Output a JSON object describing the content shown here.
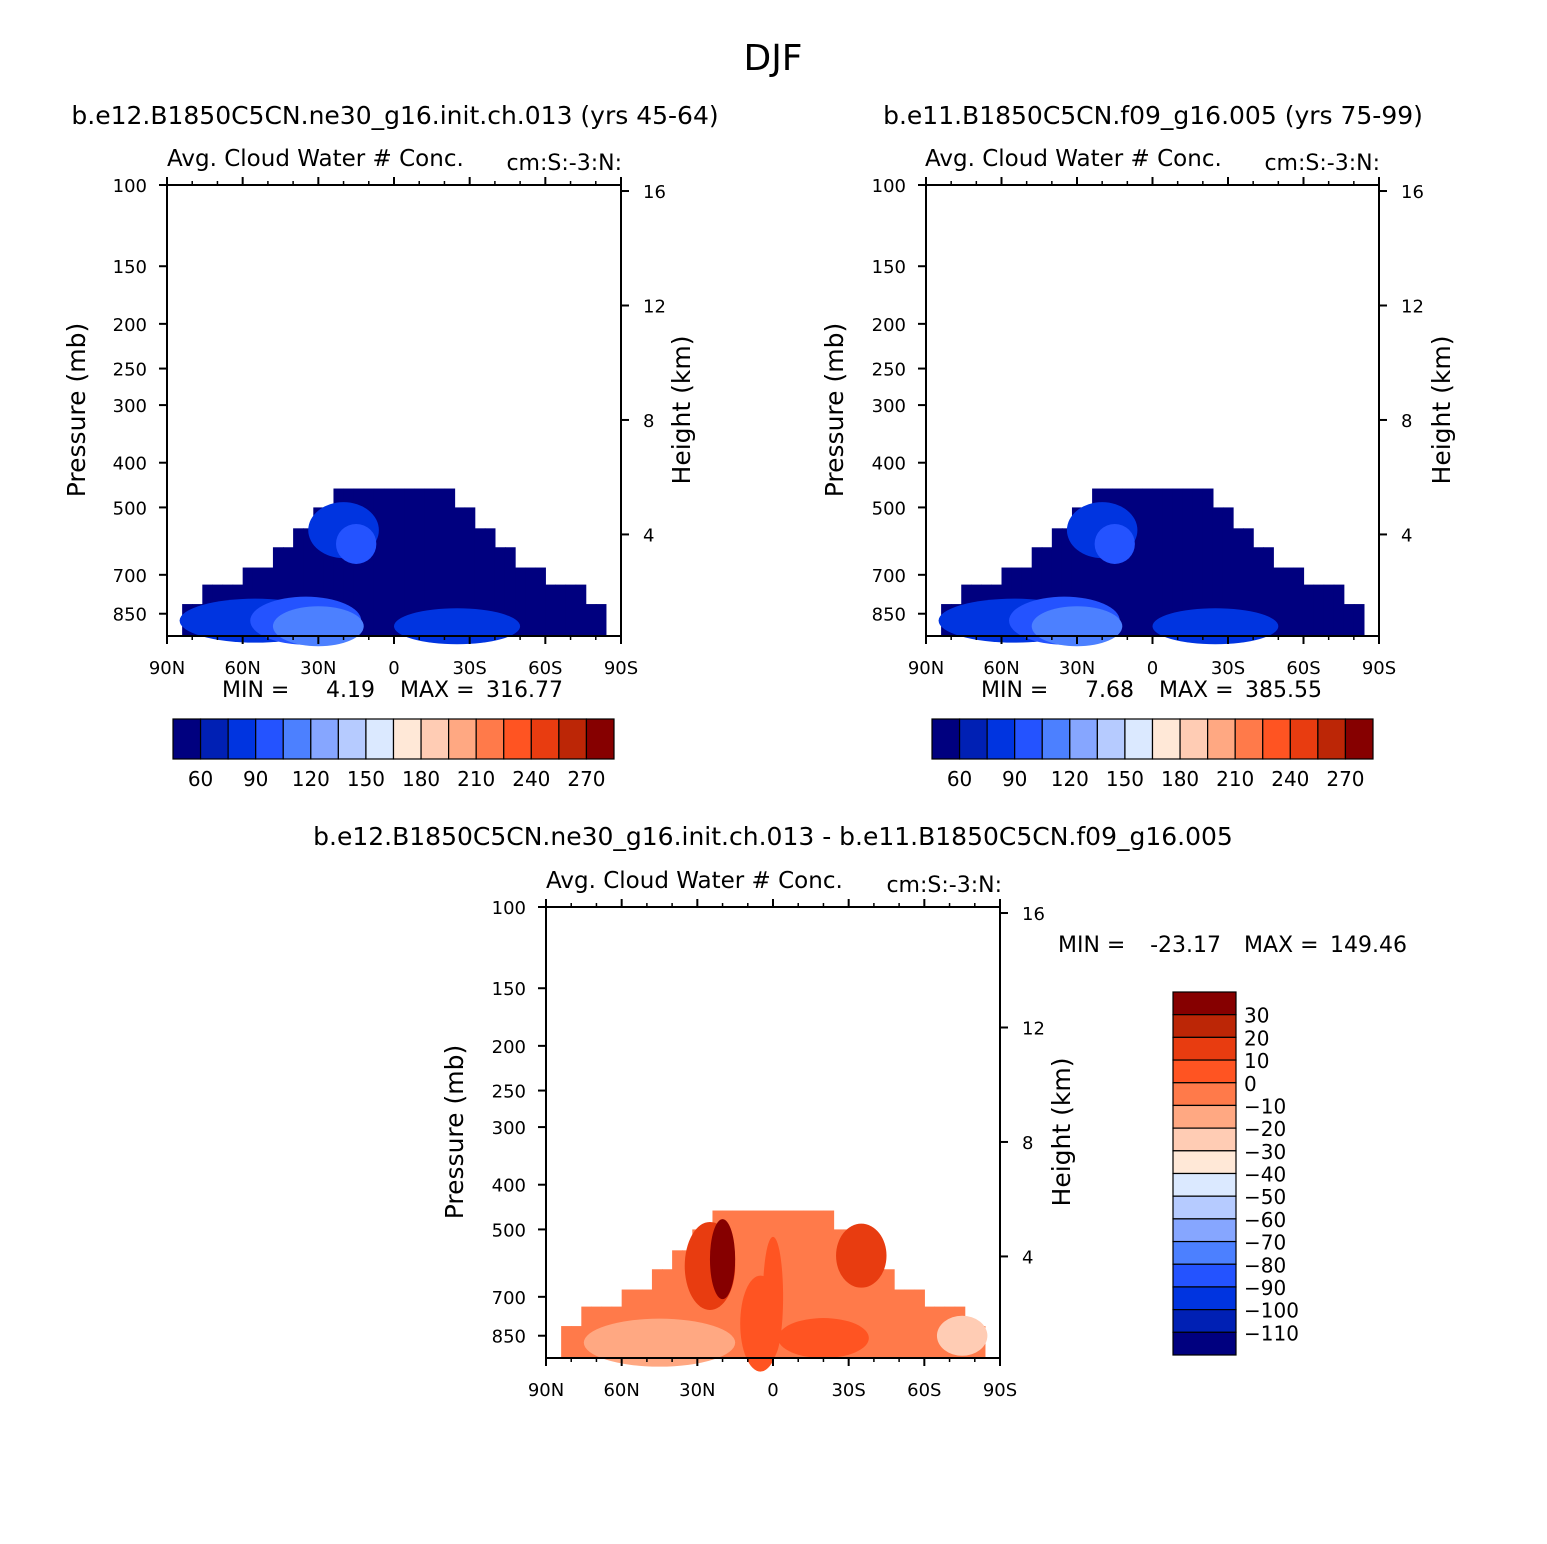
{
  "figure_title": "DJF",
  "colors": {
    "abs_palette": [
      "#00007f",
      "#0020b4",
      "#0034e0",
      "#2453ff",
      "#4c80ff",
      "#86a6ff",
      "#b6cbff",
      "#dbe9ff",
      "#ffe8d7",
      "#ffccb4",
      "#ffa882",
      "#ff7a4a",
      "#ff5422",
      "#e83c10",
      "#bc2606",
      "#860000"
    ],
    "diff_palette": [
      "#00007f",
      "#0020b4",
      "#0034e0",
      "#2453ff",
      "#4c80ff",
      "#86a6ff",
      "#b6cbff",
      "#dbe9ff",
      "#ffe8d7",
      "#ffccb4",
      "#ffa882",
      "#ff7a4a",
      "#ff5422",
      "#e83c10",
      "#bc2606",
      "#860000"
    ]
  },
  "chart_data": [
    {
      "type": "heatmap",
      "case_title": "b.e12.B1850C5CN.ne30_g16.init.ch.013 (yrs 45-64)",
      "title": "Avg. Cloud Water # Conc.",
      "units": "cm:S:-3:N:",
      "xlabel": "",
      "ylabel": "Pressure (mb)",
      "y2label": "Height (km)",
      "xlim": [
        -90,
        90
      ],
      "ylim_pressure": [
        100,
        950
      ],
      "x_tick_labels": [
        "90N",
        "60N",
        "30N",
        "0",
        "30S",
        "60S",
        "90S"
      ],
      "y_tick_labels": [
        "100",
        "150",
        "200",
        "250",
        "300",
        "400",
        "500",
        "700",
        "850"
      ],
      "y2_tick_labels": [
        "16",
        "12",
        "8",
        "4"
      ],
      "min_label": "MIN =",
      "min_value": "4.19",
      "max_label": "MAX =",
      "max_value": "316.77",
      "colorbar_labels": [
        "60",
        "90",
        "120",
        "150",
        "180",
        "210",
        "240",
        "270"
      ],
      "field": "abs",
      "top_cells": [
        -90,
        -60,
        -30,
        -5,
        -20,
        -15,
        5,
        15,
        22
      ]
    },
    {
      "type": "heatmap",
      "case_title": "b.e11.B1850C5CN.f09_g16.005 (yrs 75-99)",
      "title": "Avg. Cloud Water # Conc.",
      "units": "cm:S:-3:N:",
      "xlabel": "",
      "ylabel": "Pressure (mb)",
      "y2label": "Height (km)",
      "xlim": [
        -90,
        90
      ],
      "ylim_pressure": [
        100,
        950
      ],
      "x_tick_labels": [
        "90N",
        "60N",
        "30N",
        "0",
        "30S",
        "60S",
        "90S"
      ],
      "y_tick_labels": [
        "100",
        "150",
        "200",
        "250",
        "300",
        "400",
        "500",
        "700",
        "850"
      ],
      "y2_tick_labels": [
        "16",
        "12",
        "8",
        "4"
      ],
      "min_label": "MIN =",
      "min_value": "7.68",
      "max_label": "MAX =",
      "max_value": "385.55",
      "colorbar_labels": [
        "60",
        "90",
        "120",
        "150",
        "180",
        "210",
        "240",
        "270"
      ],
      "field": "abs2",
      "top_cells": []
    },
    {
      "type": "heatmap",
      "case_title": "b.e12.B1850C5CN.ne30_g16.init.ch.013 - b.e11.B1850C5CN.f09_g16.005",
      "title": "Avg. Cloud Water # Conc.",
      "units": "cm:S:-3:N:",
      "xlabel": "",
      "ylabel": "Pressure (mb)",
      "y2label": "Height (km)",
      "xlim": [
        -90,
        90
      ],
      "ylim_pressure": [
        100,
        950
      ],
      "x_tick_labels": [
        "90N",
        "60N",
        "30N",
        "0",
        "30S",
        "60S",
        "90S"
      ],
      "y_tick_labels": [
        "100",
        "150",
        "200",
        "250",
        "300",
        "400",
        "500",
        "700",
        "850"
      ],
      "y2_tick_labels": [
        "16",
        "12",
        "8",
        "4"
      ],
      "min_label": "MIN =",
      "min_value": "-23.17",
      "max_label": "MAX =",
      "max_value": "149.46",
      "colorbar_labels": [
        "30",
        "20",
        "10",
        "0",
        "−10",
        "−20",
        "−30",
        "−40",
        "−50",
        "−60",
        "−70",
        "−80",
        "−90",
        "−100",
        "−110"
      ],
      "field": "diff",
      "top_cells": []
    }
  ]
}
